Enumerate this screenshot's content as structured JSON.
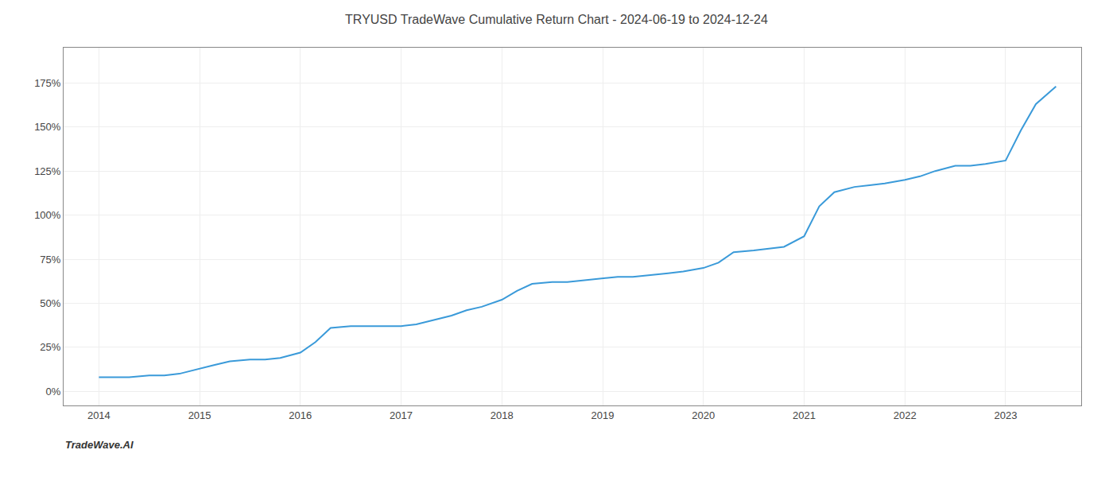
{
  "chart_data": {
    "type": "line",
    "title": "TRYUSD TradeWave Cumulative Return Chart - 2024-06-19 to 2024-12-24",
    "annotations": [
      {
        "text": "TradeWave.AI"
      }
    ],
    "color": "#3a9ad9",
    "grid": true,
    "x": [
      2014.0,
      2014.15,
      2014.3,
      2014.5,
      2014.65,
      2014.8,
      2015.0,
      2015.15,
      2015.3,
      2015.5,
      2015.65,
      2015.8,
      2016.0,
      2016.15,
      2016.3,
      2016.5,
      2016.65,
      2016.8,
      2017.0,
      2017.15,
      2017.3,
      2017.5,
      2017.65,
      2017.8,
      2018.0,
      2018.15,
      2018.3,
      2018.5,
      2018.65,
      2018.8,
      2019.0,
      2019.15,
      2019.3,
      2019.5,
      2019.65,
      2019.8,
      2020.0,
      2020.15,
      2020.3,
      2020.5,
      2020.65,
      2020.8,
      2021.0,
      2021.15,
      2021.3,
      2021.5,
      2021.65,
      2021.8,
      2022.0,
      2022.15,
      2022.3,
      2022.5,
      2022.65,
      2022.8,
      2023.0,
      2023.15,
      2023.3,
      2023.5
    ],
    "values": [
      8,
      8,
      8,
      9,
      9,
      10,
      13,
      15,
      17,
      18,
      18,
      19,
      22,
      28,
      36,
      37,
      37,
      37,
      37,
      38,
      40,
      43,
      46,
      48,
      52,
      57,
      61,
      62,
      62,
      63,
      64,
      65,
      65,
      66,
      67,
      68,
      70,
      73,
      79,
      80,
      81,
      82,
      88,
      105,
      113,
      116,
      117,
      118,
      120,
      122,
      125,
      128,
      128,
      129,
      131,
      148,
      163,
      173
    ],
    "xlim": [
      2013.65,
      2023.75
    ],
    "xticks": [
      2014,
      2015,
      2016,
      2017,
      2018,
      2019,
      2020,
      2021,
      2022,
      2023
    ],
    "ylim": [
      -8,
      195
    ],
    "yticks": [
      {
        "value": 0,
        "label": "0%"
      },
      {
        "value": 25,
        "label": "25%"
      },
      {
        "value": 50,
        "label": "50%"
      },
      {
        "value": 75,
        "label": "75%"
      },
      {
        "value": 100,
        "label": "100%"
      },
      {
        "value": 125,
        "label": "125%"
      },
      {
        "value": 150,
        "label": "150%"
      },
      {
        "value": 175,
        "label": "175%"
      }
    ]
  }
}
